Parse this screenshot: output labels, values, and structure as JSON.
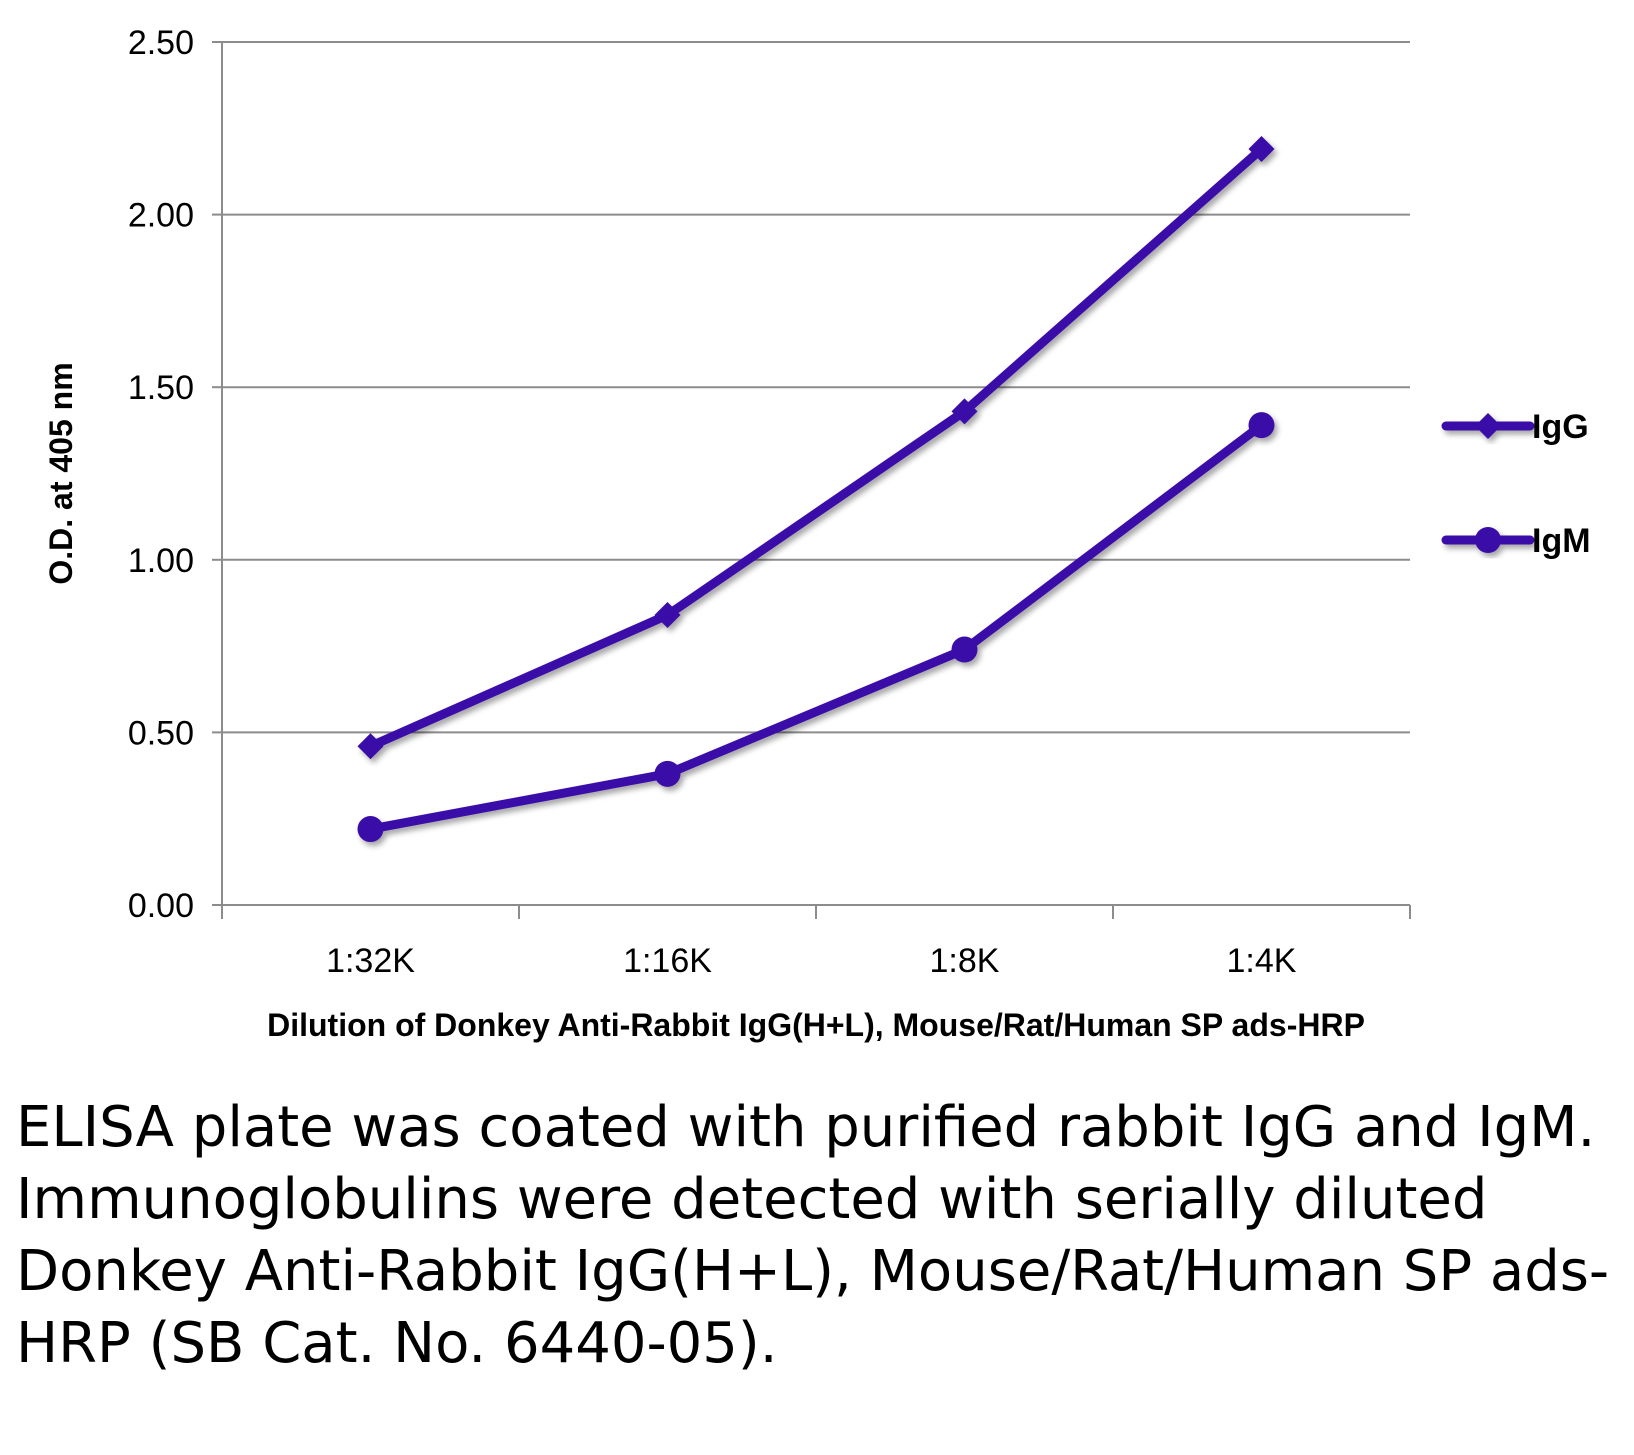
{
  "chart_data": {
    "type": "line",
    "title": "",
    "xlabel": "Dilution of Donkey Anti-Rabbit IgG(H+L), Mouse/Rat/Human SP ads-HRP",
    "ylabel": "O.D. at 405 nm",
    "categories": [
      "1:32K",
      "1:16K",
      "1:8K",
      "1:4K"
    ],
    "ylim": [
      0,
      2.5
    ],
    "yticks": [
      "0.00",
      "0.50",
      "1.00",
      "1.50",
      "2.00",
      "2.50"
    ],
    "grid": true,
    "legend_position": "right",
    "series": [
      {
        "name": "IgG",
        "marker": "diamond",
        "color": "#3a0aa8",
        "values": [
          0.46,
          0.84,
          1.43,
          2.19
        ]
      },
      {
        "name": "IgM",
        "marker": "circle",
        "color": "#3a0aa8",
        "values": [
          0.22,
          0.38,
          0.74,
          1.39
        ]
      }
    ]
  },
  "caption": "ELISA plate was coated with purified rabbit IgG and IgM.  Immunoglobulins were detected with serially diluted Donkey Anti-Rabbit IgG(H+L), Mouse/Rat/Human SP ads-HRP (SB Cat. No. 6440-05)."
}
